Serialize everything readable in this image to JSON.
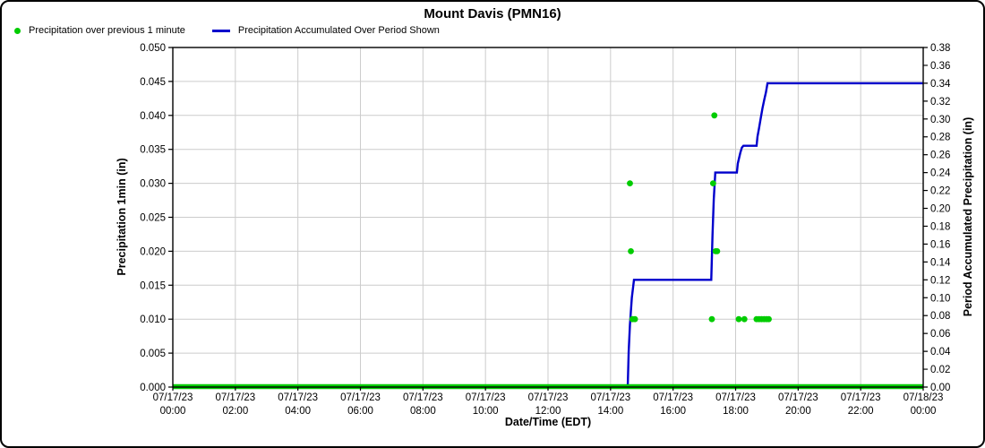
{
  "chart_data": {
    "type": "line",
    "title": "Mount Davis (PMN16)",
    "xlabel": "Date/Time (EDT)",
    "ylabel_left": "Precipitation 1min (in)",
    "ylabel_right": "Period Accumulated Precipitation (in)",
    "legend_position": "top-left",
    "grid": true,
    "colors": {
      "grid": "#cccccc",
      "axis": "#000000",
      "background": "#ffffff"
    },
    "x_axis": {
      "min_hour": 0,
      "max_hour": 24,
      "tick_interval_hours": 2,
      "tick_labels": [
        [
          "07/17/23",
          "00:00"
        ],
        [
          "07/17/23",
          "02:00"
        ],
        [
          "07/17/23",
          "04:00"
        ],
        [
          "07/17/23",
          "06:00"
        ],
        [
          "07/17/23",
          "08:00"
        ],
        [
          "07/17/23",
          "10:00"
        ],
        [
          "07/17/23",
          "12:00"
        ],
        [
          "07/17/23",
          "14:00"
        ],
        [
          "07/17/23",
          "16:00"
        ],
        [
          "07/17/23",
          "18:00"
        ],
        [
          "07/17/23",
          "20:00"
        ],
        [
          "07/17/23",
          "22:00"
        ],
        [
          "07/18/23",
          "00:00"
        ]
      ]
    },
    "y_left": {
      "min": 0,
      "max": 0.05,
      "ticks": [
        "0.000",
        "0.005",
        "0.010",
        "0.015",
        "0.020",
        "0.025",
        "0.030",
        "0.035",
        "0.040",
        "0.045",
        "0.050"
      ]
    },
    "y_right": {
      "min": 0,
      "max": 0.38,
      "ticks": [
        "0.00",
        "0.02",
        "0.04",
        "0.06",
        "0.08",
        "0.10",
        "0.12",
        "0.14",
        "0.16",
        "0.18",
        "0.20",
        "0.22",
        "0.24",
        "0.26",
        "0.28",
        "0.30",
        "0.32",
        "0.34",
        "0.36",
        "0.38"
      ]
    },
    "series": [
      {
        "name": "Precipitation over previous 1 minute",
        "type": "scatter",
        "axis": "left",
        "color": "#00cc00",
        "zero_baseline": {
          "value": 0.0,
          "from_hour": 0.0,
          "to_hour": 24.0,
          "note": "one-minute dots at 0.000 form a solid green band along the x-axis"
        },
        "nonzero_points": [
          {
            "hour": 14.62,
            "value": 0.03
          },
          {
            "hour": 14.65,
            "value": 0.02
          },
          {
            "hour": 14.7,
            "value": 0.01
          },
          {
            "hour": 14.78,
            "value": 0.01
          },
          {
            "hour": 17.24,
            "value": 0.01
          },
          {
            "hour": 17.28,
            "value": 0.03
          },
          {
            "hour": 17.32,
            "value": 0.04
          },
          {
            "hour": 17.36,
            "value": 0.02
          },
          {
            "hour": 17.41,
            "value": 0.02
          },
          {
            "hour": 18.1,
            "value": 0.01
          },
          {
            "hour": 18.28,
            "value": 0.01
          },
          {
            "hour": 18.67,
            "value": 0.01
          },
          {
            "hour": 18.75,
            "value": 0.01
          },
          {
            "hour": 18.83,
            "value": 0.01
          },
          {
            "hour": 18.91,
            "value": 0.01
          },
          {
            "hour": 18.99,
            "value": 0.01
          },
          {
            "hour": 19.06,
            "value": 0.01
          }
        ]
      },
      {
        "name": "Precipitation Accumulated Over Period Shown",
        "type": "line",
        "axis": "right",
        "color": "#0000cc",
        "points": [
          [
            0.0,
            0.0
          ],
          [
            14.55,
            0.0
          ],
          [
            14.58,
            0.04
          ],
          [
            14.62,
            0.07
          ],
          [
            14.68,
            0.1
          ],
          [
            14.75,
            0.12
          ],
          [
            17.22,
            0.12
          ],
          [
            17.26,
            0.17
          ],
          [
            17.3,
            0.21
          ],
          [
            17.35,
            0.24
          ],
          [
            18.04,
            0.24
          ],
          [
            18.07,
            0.25
          ],
          [
            18.11,
            0.256
          ],
          [
            18.15,
            0.262
          ],
          [
            18.2,
            0.268
          ],
          [
            18.25,
            0.27
          ],
          [
            18.67,
            0.27
          ],
          [
            18.7,
            0.28
          ],
          [
            18.75,
            0.29
          ],
          [
            18.8,
            0.3
          ],
          [
            18.86,
            0.312
          ],
          [
            18.92,
            0.322
          ],
          [
            18.97,
            0.33
          ],
          [
            19.02,
            0.34
          ],
          [
            24.0,
            0.34
          ]
        ]
      }
    ]
  }
}
